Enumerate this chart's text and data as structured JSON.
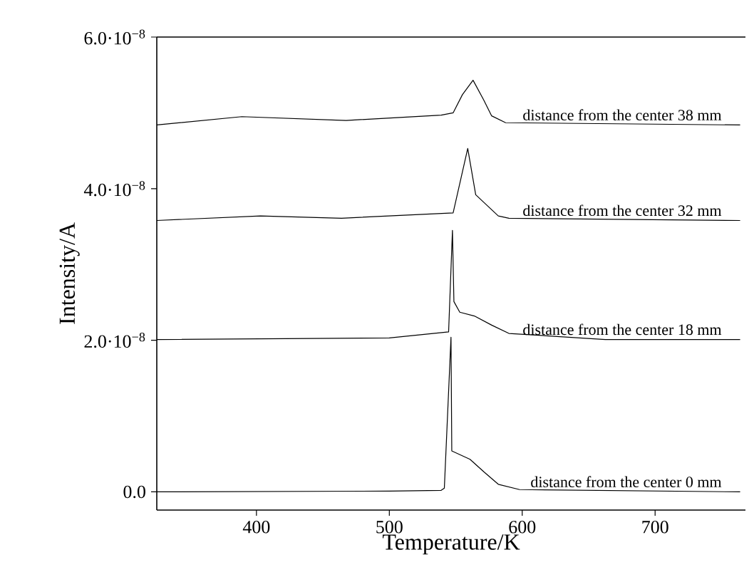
{
  "chart_data": {
    "type": "line",
    "xlabel": "Temperature/K",
    "ylabel": "Intensity/A",
    "xlim": [
      325,
      768
    ],
    "ylim": [
      -2.4e-09,
      6e-08
    ],
    "xticks": [
      400,
      500,
      600,
      700
    ],
    "yticks": [
      {
        "value": 0,
        "label": "0.0"
      },
      {
        "value": 2e-08,
        "label": "2.0·10$^{−8}$"
      },
      {
        "value": 4e-08,
        "label": "4.0·10$^{−8}$"
      },
      {
        "value": 6e-08,
        "label": "6.0·10$^{−8}$"
      }
    ],
    "series": [
      {
        "name": "distance from the center 38 mm",
        "color": "#000000",
        "x": [
          325,
          389,
          467.5,
          539,
          548,
          555,
          563,
          571,
          577,
          587.5,
          764
        ],
        "values": [
          4.84e-08,
          4.95e-08,
          4.9e-08,
          4.97e-08,
          5e-08,
          5.24e-08,
          5.43e-08,
          5.17e-08,
          4.96e-08,
          4.87e-08,
          4.84e-08
        ]
      },
      {
        "name": "distance from the center 32 mm",
        "color": "#000000",
        "x": [
          325,
          403,
          464,
          548,
          559,
          565,
          582,
          590,
          764
        ],
        "values": [
          3.58e-08,
          3.64e-08,
          3.61e-08,
          3.68e-08,
          4.53e-08,
          3.92e-08,
          3.64e-08,
          3.61e-08,
          3.58e-08
        ]
      },
      {
        "name": "distance from the center 18 mm",
        "color": "#000000",
        "x": [
          325,
          500,
          544.6,
          547.5,
          548.6,
          553,
          564,
          577,
          590,
          662.5,
          764
        ],
        "values": [
          2.01e-08,
          2.03e-08,
          2.11e-08,
          3.45e-08,
          2.51e-08,
          2.37e-08,
          2.32e-08,
          2.2e-08,
          2.09e-08,
          2.01e-08,
          2.01e-08
        ]
      },
      {
        "name": "distance from the center 0 mm",
        "color": "#000000",
        "x": [
          325,
          500,
          539,
          541.4,
          546.4,
          547,
          560.7,
          571.4,
          582,
          598,
          764
        ],
        "values": [
          0,
          1e-10,
          2e-10,
          5e-10,
          2.04e-08,
          5.4e-09,
          4.3e-09,
          2.6e-09,
          1e-09,
          3e-10,
          0
        ]
      }
    ]
  }
}
